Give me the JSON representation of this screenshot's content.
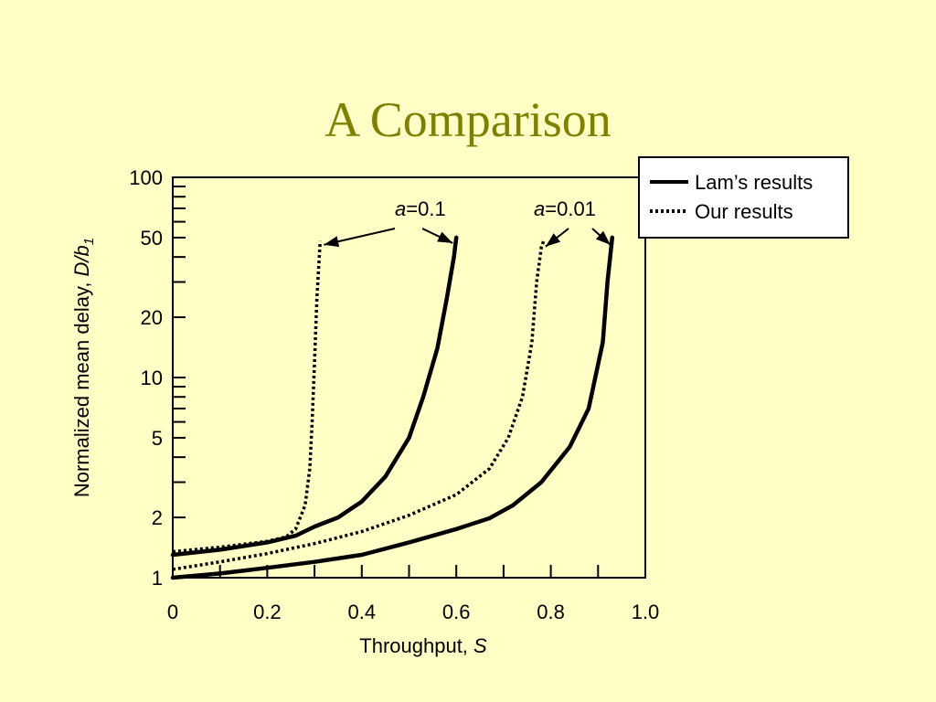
{
  "slide": {
    "title": "A Comparison"
  },
  "chart_data": {
    "type": "line",
    "title": "",
    "xlabel": "Throughput, ",
    "xlabel_var": "S",
    "ylabel": "Normalized mean delay, ",
    "ylabel_var": "D/b",
    "ylabel_sub": "1",
    "xlim": [
      0,
      1.0
    ],
    "ylim": [
      1,
      100
    ],
    "yscale": "log",
    "grid": false,
    "legend_position": "top-right",
    "x_ticks": [
      {
        "value": 0,
        "label": "0"
      },
      {
        "value": 0.2,
        "label": "0.2"
      },
      {
        "value": 0.4,
        "label": "0.4"
      },
      {
        "value": 0.6,
        "label": "0.6"
      },
      {
        "value": 0.8,
        "label": "0.8"
      },
      {
        "value": 1.0,
        "label": "1.0"
      }
    ],
    "y_ticks": [
      {
        "value": 1,
        "label": "1"
      },
      {
        "value": 2,
        "label": "2"
      },
      {
        "value": 5,
        "label": "5"
      },
      {
        "value": 10,
        "label": "10"
      },
      {
        "value": 20,
        "label": "20"
      },
      {
        "value": 50,
        "label": "50"
      },
      {
        "value": 100,
        "label": "100"
      }
    ],
    "legend": [
      {
        "label": "Lam’s results",
        "style": "solid"
      },
      {
        "label": "Our results",
        "style": "dotted"
      }
    ],
    "series": [
      {
        "group": "a=0.1",
        "style": "solid",
        "points": [
          [
            0,
            1.3
          ],
          [
            0.1,
            1.38
          ],
          [
            0.2,
            1.5
          ],
          [
            0.26,
            1.62
          ],
          [
            0.3,
            1.8
          ],
          [
            0.35,
            2.0
          ],
          [
            0.4,
            2.4
          ],
          [
            0.45,
            3.2
          ],
          [
            0.5,
            5.0
          ],
          [
            0.53,
            8.0
          ],
          [
            0.56,
            14.0
          ],
          [
            0.58,
            25.0
          ],
          [
            0.595,
            40.0
          ],
          [
            0.6,
            50.0
          ]
        ]
      },
      {
        "group": "a=0.1",
        "style": "dotted",
        "points": [
          [
            0,
            1.35
          ],
          [
            0.1,
            1.42
          ],
          [
            0.2,
            1.52
          ],
          [
            0.24,
            1.6
          ],
          [
            0.26,
            1.75
          ],
          [
            0.28,
            2.3
          ],
          [
            0.29,
            3.5
          ],
          [
            0.295,
            6.0
          ],
          [
            0.3,
            12.0
          ],
          [
            0.305,
            25.0
          ],
          [
            0.31,
            40.0
          ],
          [
            0.312,
            48.0
          ]
        ]
      },
      {
        "group": "a=0.01",
        "style": "solid",
        "points": [
          [
            0,
            1.0
          ],
          [
            0.1,
            1.05
          ],
          [
            0.2,
            1.12
          ],
          [
            0.3,
            1.2
          ],
          [
            0.4,
            1.3
          ],
          [
            0.5,
            1.5
          ],
          [
            0.6,
            1.75
          ],
          [
            0.67,
            1.98
          ],
          [
            0.72,
            2.3
          ],
          [
            0.78,
            3.0
          ],
          [
            0.84,
            4.5
          ],
          [
            0.88,
            7.0
          ],
          [
            0.91,
            15.0
          ],
          [
            0.92,
            30.0
          ],
          [
            0.93,
            50.0
          ]
        ]
      },
      {
        "group": "a=0.01",
        "style": "dotted",
        "points": [
          [
            0,
            1.1
          ],
          [
            0.1,
            1.2
          ],
          [
            0.2,
            1.32
          ],
          [
            0.3,
            1.48
          ],
          [
            0.4,
            1.7
          ],
          [
            0.5,
            2.05
          ],
          [
            0.6,
            2.6
          ],
          [
            0.67,
            3.5
          ],
          [
            0.71,
            5.0
          ],
          [
            0.74,
            8.0
          ],
          [
            0.76,
            15.0
          ],
          [
            0.77,
            30.0
          ],
          [
            0.78,
            45.0
          ],
          [
            0.785,
            48.0
          ]
        ]
      }
    ],
    "annotations": [
      {
        "var": "a",
        "text": "=0.1"
      },
      {
        "var": "a",
        "text": "=0.01"
      }
    ]
  }
}
